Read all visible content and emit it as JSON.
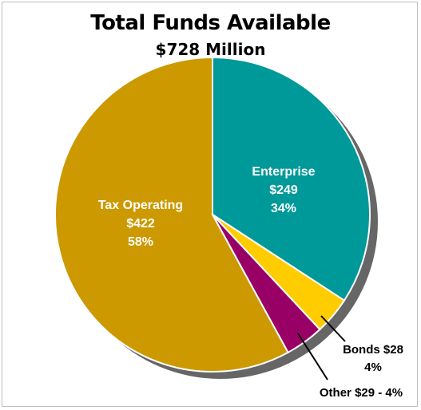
{
  "chart_data": {
    "type": "pie",
    "title": "Total Funds Available",
    "subtitle": "$728 Million",
    "slices": [
      {
        "name": "Enterprise",
        "amount": "$249",
        "percent": "34%",
        "value": 249,
        "color": "#009999"
      },
      {
        "name": "Bonds $28",
        "amount": "$28",
        "percent": "4%",
        "value": 28,
        "color": "#ffcc00"
      },
      {
        "name": "Other $29 - 4%",
        "amount": "$29",
        "percent": "4%",
        "value": 29,
        "color": "#990066"
      },
      {
        "name": "Tax Operating",
        "amount": "$422",
        "percent": "58%",
        "value": 422,
        "color": "#cc9900"
      }
    ],
    "shadow_color": "#666666"
  }
}
